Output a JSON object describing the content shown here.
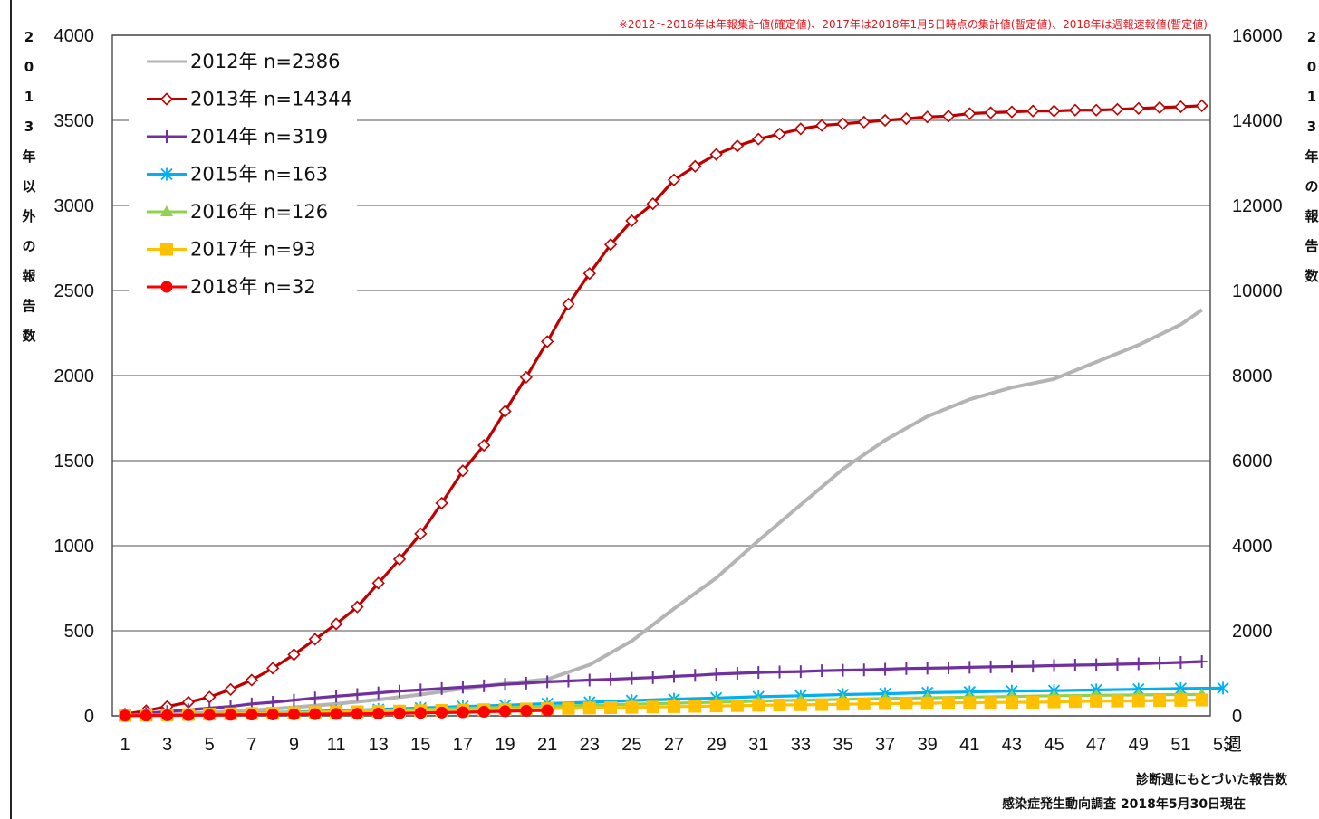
{
  "chart_data": {
    "type": "line",
    "note": "※2012〜2016年は年報集計値(確定値)、2017年は2018年1月5日時点の集計値(暫定値)、2018年は週報速報値(暫定値)",
    "left_ylabel": "2013年以外の報告数",
    "right_ylabel": "2013年の報告数",
    "x_unit": "週",
    "xlim": [
      1,
      53
    ],
    "x_ticks": [
      "1",
      "3",
      "5",
      "7",
      "9",
      "11",
      "13",
      "15",
      "17",
      "19",
      "21",
      "23",
      "25",
      "27",
      "29",
      "31",
      "33",
      "35",
      "37",
      "39",
      "41",
      "43",
      "45",
      "47",
      "49",
      "51",
      "53"
    ],
    "left_ylim": [
      0,
      4000
    ],
    "left_yticks": [
      "0",
      "500",
      "1000",
      "1500",
      "2000",
      "2500",
      "3000",
      "3500",
      "4000"
    ],
    "right_ylim": [
      0,
      16000
    ],
    "right_yticks": [
      "0",
      "2000",
      "4000",
      "6000",
      "8000",
      "10000",
      "12000",
      "14000",
      "16000"
    ],
    "grid": true,
    "legend_position": "top-left",
    "footer": [
      "診断週にもとづいた報告数",
      "感染症発生動向調査 2018年5月30日現在"
    ],
    "series": [
      {
        "name": "2012年 n=2386",
        "axis": "left",
        "color": "#b4b4b4",
        "marker": "none",
        "x": [
          1,
          3,
          5,
          7,
          9,
          11,
          13,
          15,
          17,
          19,
          21,
          23,
          25,
          27,
          29,
          31,
          33,
          35,
          37,
          39,
          41,
          43,
          45,
          47,
          49,
          51,
          52
        ],
        "y": [
          5,
          12,
          20,
          32,
          50,
          70,
          95,
          125,
          160,
          190,
          215,
          300,
          440,
          630,
          810,
          1030,
          1240,
          1450,
          1620,
          1760,
          1860,
          1930,
          1980,
          2080,
          2180,
          2300,
          2386
        ]
      },
      {
        "name": "2013年 n=14344",
        "axis": "right",
        "color": "#c00000",
        "marker": "diamond",
        "x": [
          1,
          2,
          3,
          4,
          5,
          6,
          7,
          8,
          9,
          10,
          11,
          12,
          13,
          14,
          15,
          16,
          17,
          18,
          19,
          20,
          21,
          22,
          23,
          24,
          25,
          26,
          27,
          28,
          29,
          30,
          31,
          32,
          33,
          34,
          35,
          36,
          37,
          38,
          39,
          40,
          41,
          42,
          43,
          44,
          45,
          46,
          47,
          48,
          49,
          50,
          51,
          52
        ],
        "y": [
          40,
          120,
          220,
          320,
          440,
          620,
          840,
          1120,
          1440,
          1800,
          2160,
          2560,
          3120,
          3680,
          4280,
          5000,
          5760,
          6360,
          7160,
          7960,
          8800,
          9680,
          10400,
          11080,
          11640,
          12040,
          12600,
          12920,
          13200,
          13400,
          13560,
          13680,
          13800,
          13880,
          13920,
          13960,
          14000,
          14040,
          14080,
          14100,
          14160,
          14180,
          14200,
          14220,
          14220,
          14240,
          14240,
          14260,
          14280,
          14300,
          14320,
          14344
        ]
      },
      {
        "name": "2014年 n=319",
        "axis": "left",
        "color": "#7030a0",
        "marker": "plus",
        "x": [
          1,
          2,
          3,
          4,
          5,
          6,
          7,
          8,
          9,
          10,
          11,
          12,
          13,
          14,
          15,
          16,
          17,
          18,
          19,
          20,
          21,
          22,
          23,
          24,
          25,
          26,
          27,
          28,
          29,
          30,
          31,
          32,
          33,
          34,
          35,
          36,
          37,
          38,
          39,
          40,
          41,
          42,
          43,
          44,
          45,
          46,
          47,
          48,
          49,
          50,
          51,
          52
        ],
        "y": [
          5,
          15,
          25,
          35,
          45,
          55,
          70,
          80,
          92,
          105,
          115,
          125,
          135,
          145,
          152,
          160,
          168,
          176,
          185,
          192,
          200,
          205,
          210,
          215,
          220,
          225,
          232,
          238,
          245,
          250,
          255,
          258,
          260,
          265,
          268,
          270,
          274,
          278,
          280,
          282,
          285,
          288,
          290,
          292,
          295,
          298,
          300,
          303,
          306,
          310,
          314,
          319
        ]
      },
      {
        "name": "2015年 n=163",
        "axis": "left",
        "color": "#00b0f0",
        "marker": "x",
        "x": [
          1,
          3,
          5,
          7,
          9,
          11,
          13,
          15,
          17,
          19,
          21,
          23,
          25,
          27,
          29,
          31,
          33,
          35,
          37,
          39,
          41,
          43,
          45,
          47,
          49,
          51,
          53
        ],
        "y": [
          2,
          6,
          10,
          16,
          22,
          30,
          38,
          46,
          55,
          62,
          72,
          80,
          90,
          98,
          105,
          112,
          118,
          125,
          130,
          136,
          140,
          145,
          148,
          152,
          156,
          160,
          163
        ]
      },
      {
        "name": "2016年 n=126",
        "axis": "left",
        "color": "#92d050",
        "marker": "triangle",
        "x": [
          1,
          3,
          5,
          7,
          9,
          11,
          13,
          15,
          17,
          19,
          21,
          23,
          25,
          27,
          29,
          31,
          33,
          35,
          37,
          39,
          41,
          43,
          45,
          47,
          49,
          51,
          52
        ],
        "y": [
          2,
          5,
          9,
          14,
          19,
          25,
          31,
          38,
          44,
          50,
          56,
          62,
          68,
          74,
          80,
          86,
          92,
          97,
          102,
          106,
          110,
          114,
          118,
          121,
          123,
          125,
          126
        ]
      },
      {
        "name": "2017年 n=93",
        "axis": "left",
        "color": "#ffc000",
        "marker": "square",
        "x": [
          1,
          2,
          3,
          4,
          5,
          6,
          7,
          8,
          9,
          10,
          11,
          12,
          13,
          14,
          15,
          16,
          17,
          18,
          19,
          20,
          21,
          22,
          23,
          24,
          25,
          26,
          27,
          28,
          29,
          30,
          31,
          32,
          33,
          34,
          35,
          36,
          37,
          38,
          39,
          40,
          41,
          42,
          43,
          44,
          45,
          46,
          47,
          48,
          49,
          50,
          51,
          52
        ],
        "y": [
          2,
          4,
          6,
          8,
          10,
          12,
          14,
          16,
          18,
          20,
          22,
          24,
          26,
          28,
          30,
          32,
          34,
          36,
          38,
          40,
          42,
          44,
          46,
          48,
          50,
          52,
          54,
          56,
          58,
          60,
          62,
          64,
          65,
          66,
          68,
          70,
          72,
          73,
          74,
          76,
          77,
          78,
          79,
          80,
          82,
          84,
          86,
          87,
          88,
          90,
          91,
          93
        ]
      },
      {
        "name": "2018年 n=32",
        "axis": "left",
        "color": "#ff0000",
        "marker": "circle",
        "x": [
          1,
          2,
          3,
          4,
          5,
          6,
          7,
          8,
          9,
          10,
          11,
          12,
          13,
          14,
          15,
          16,
          17,
          18,
          19,
          20,
          21
        ],
        "y": [
          1,
          2,
          3,
          4,
          5,
          6,
          7,
          8,
          9,
          10,
          11,
          12,
          13,
          15,
          17,
          19,
          21,
          24,
          27,
          30,
          32
        ]
      }
    ]
  }
}
